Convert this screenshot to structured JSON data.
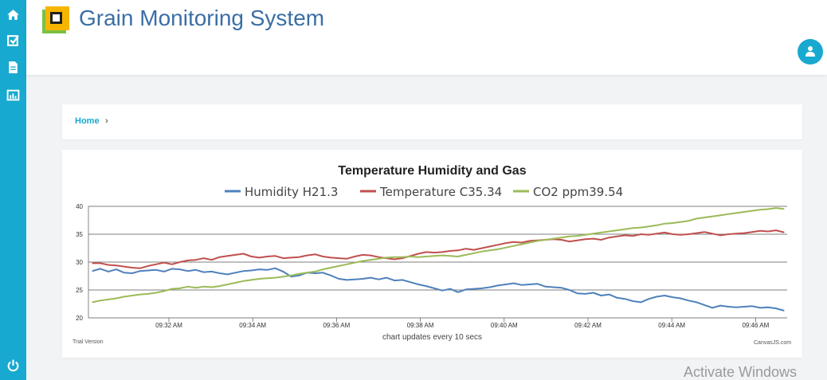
{
  "header": {
    "title": "Grain Monitoring System"
  },
  "sidebar": {
    "icons": [
      "home-icon",
      "check-square-icon",
      "file-icon",
      "bar-chart-icon"
    ],
    "bottom_icon": "power-icon"
  },
  "breadcrumb": {
    "home": "Home",
    "separator": "›"
  },
  "chart_data": {
    "type": "line",
    "title": "Temperature Humidity and Gas",
    "ylim": [
      20,
      40
    ],
    "yticks": [
      20,
      25,
      30,
      35,
      40
    ],
    "xticks": [
      "09:32 AM",
      "09:34 AM",
      "09:36 AM",
      "09:38 AM",
      "09:40 AM",
      "09:42 AM",
      "09:44 AM",
      "09:46 AM"
    ],
    "xlabel": "chart updates every 10 secs",
    "grid": true,
    "legend_position": "top-center",
    "series": [
      {
        "name": "Humidity  H21.3",
        "color": "#4f81bc",
        "values": [
          28.4,
          28.8,
          28.3,
          28.7,
          28.1,
          28.0,
          28.4,
          28.5,
          28.6,
          28.3,
          28.8,
          28.7,
          28.4,
          28.6,
          28.2,
          28.3,
          28.0,
          27.8,
          28.1,
          28.4,
          28.5,
          28.7,
          28.6,
          28.9,
          28.3,
          27.4,
          27.6,
          28.1,
          28.0,
          28.1,
          27.6,
          27.0,
          26.8,
          26.9,
          27.0,
          27.2,
          26.9,
          27.2,
          26.7,
          26.8,
          26.4,
          26.0,
          25.7,
          25.3,
          24.9,
          25.2,
          24.6,
          25.1,
          25.2,
          25.3,
          25.5,
          25.8,
          26.0,
          26.2,
          25.9,
          26.0,
          26.1,
          25.6,
          25.5,
          25.4,
          25.0,
          24.4,
          24.3,
          24.5,
          24.0,
          24.2,
          23.6,
          23.4,
          23.0,
          22.8,
          23.4,
          23.8,
          24.0,
          23.7,
          23.5,
          23.1,
          22.8,
          22.3,
          21.8,
          22.2,
          22.0,
          21.9,
          22.0,
          22.1,
          21.8,
          21.9,
          21.7,
          21.3
        ]
      },
      {
        "name": "Temperature C35.34",
        "color": "#c0504e",
        "values": [
          29.8,
          29.8,
          29.5,
          29.4,
          29.2,
          29.0,
          28.9,
          29.3,
          29.6,
          29.9,
          29.6,
          30.0,
          30.3,
          30.4,
          30.7,
          30.4,
          30.9,
          31.1,
          31.3,
          31.5,
          31.0,
          30.8,
          31.0,
          31.1,
          30.7,
          30.8,
          30.9,
          31.2,
          31.4,
          31.0,
          30.8,
          30.7,
          30.6,
          31.0,
          31.3,
          31.2,
          30.9,
          30.7,
          30.5,
          30.7,
          31.1,
          31.5,
          31.8,
          31.7,
          31.8,
          32.0,
          32.1,
          32.4,
          32.2,
          32.5,
          32.8,
          33.1,
          33.4,
          33.6,
          33.5,
          33.8,
          33.9,
          34.0,
          34.1,
          34.0,
          33.7,
          33.9,
          34.1,
          34.2,
          34.0,
          34.4,
          34.6,
          34.8,
          34.7,
          35.0,
          34.9,
          35.1,
          35.3,
          35.0,
          34.9,
          35.0,
          35.2,
          35.4,
          35.1,
          34.8,
          35.0,
          35.1,
          35.2,
          35.4,
          35.6,
          35.5,
          35.7,
          35.34
        ]
      },
      {
        "name": "CO2 ppm39.54",
        "color": "#9bbb58",
        "values": [
          22.8,
          23.1,
          23.3,
          23.5,
          23.8,
          24.0,
          24.2,
          24.3,
          24.5,
          24.8,
          25.2,
          25.3,
          25.6,
          25.4,
          25.6,
          25.5,
          25.7,
          26.0,
          26.3,
          26.6,
          26.8,
          27.0,
          27.1,
          27.2,
          27.4,
          27.6,
          27.9,
          28.1,
          28.3,
          28.7,
          29.0,
          29.3,
          29.6,
          29.9,
          30.2,
          30.4,
          30.6,
          30.8,
          30.9,
          30.9,
          31.0,
          30.9,
          31.0,
          31.1,
          31.2,
          31.1,
          31.0,
          31.3,
          31.6,
          31.9,
          32.1,
          32.3,
          32.6,
          32.9,
          33.2,
          33.5,
          33.8,
          34.0,
          34.2,
          34.4,
          34.6,
          34.7,
          34.9,
          35.1,
          35.3,
          35.5,
          35.7,
          35.9,
          36.1,
          36.2,
          36.4,
          36.6,
          36.9,
          37.0,
          37.2,
          37.4,
          37.8,
          38.0,
          38.2,
          38.4,
          38.6,
          38.8,
          39.0,
          39.2,
          39.4,
          39.5,
          39.7,
          39.54
        ]
      }
    ]
  },
  "chart_footer": {
    "left": "Trial Version",
    "right": "CanvasJS.com"
  },
  "watermark": "Activate Windows"
}
